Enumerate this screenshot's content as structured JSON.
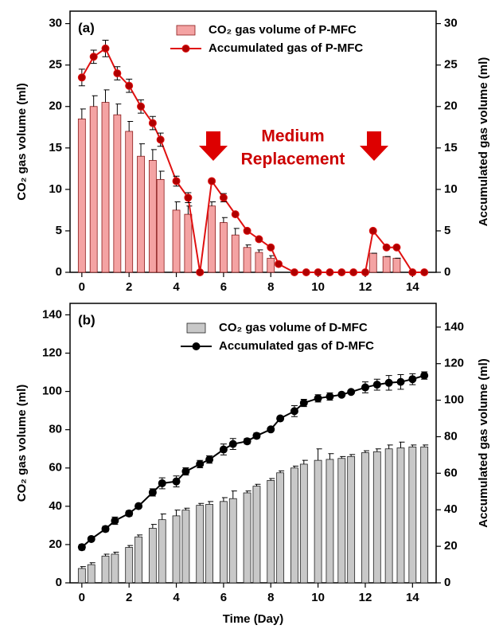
{
  "chart_data": [
    {
      "type": "bar",
      "panel_label": "(a)",
      "ylabel": "CO₂ gas volume (ml)",
      "y2label": "Accumulated gas volume (ml)",
      "annotation_lines": [
        "Medium",
        "Replacement"
      ],
      "x": [
        0,
        0.5,
        1,
        1.5,
        2,
        2.5,
        3,
        3.33,
        4,
        4.5,
        5,
        5.5,
        6,
        6.5,
        7,
        7.5,
        8,
        8.33,
        9,
        9.5,
        10,
        10.5,
        11,
        11.5,
        12,
        12.33,
        12.9,
        13.33,
        14,
        14.5
      ],
      "xlim": [
        -0.5,
        15
      ],
      "xticks": [
        0,
        2,
        4,
        6,
        8,
        10,
        12,
        14
      ],
      "ylim": [
        0,
        31.5
      ],
      "yticks": [
        0,
        5,
        10,
        15,
        20,
        25,
        30
      ],
      "y2lim": [
        0,
        31.5
      ],
      "y2ticks": [
        0,
        5,
        10,
        15,
        20,
        25,
        30
      ],
      "series": [
        {
          "name": "CO₂ gas volume of P-MFC",
          "type": "bar",
          "color": "#f4a3a3",
          "edge": "#8b1a1a",
          "values": [
            18.5,
            20,
            20.5,
            19,
            17,
            14,
            13.5,
            11.2,
            7.5,
            7,
            0,
            8,
            6,
            4.5,
            3,
            2.4,
            1.7,
            0,
            0,
            0,
            0,
            0,
            0,
            0,
            0,
            2.3,
            1.9,
            1.7,
            0,
            0
          ],
          "errors": [
            1.2,
            1.3,
            1.5,
            1.3,
            1.2,
            1.5,
            1.3,
            1.0,
            1.0,
            1.0,
            0,
            0.5,
            0.6,
            0.8,
            0.3,
            0.3,
            0.3,
            0,
            0,
            0,
            0,
            0,
            0,
            0,
            0,
            0,
            0,
            0,
            0,
            0
          ]
        },
        {
          "name": "Accumulated gas of P-MFC",
          "type": "line",
          "axis": "y2",
          "color": "#e01010",
          "marker_color": "#b00000",
          "values": [
            23.5,
            26,
            27,
            24,
            22.5,
            20,
            18,
            16,
            11,
            9,
            0,
            11,
            9,
            7,
            5,
            4,
            3,
            1,
            0,
            0,
            0,
            0,
            0,
            0,
            0,
            5,
            3,
            3,
            0,
            0
          ],
          "errors": [
            1.0,
            0.8,
            1.0,
            0.8,
            0.8,
            0.8,
            0.8,
            0.8,
            0.6,
            0.6,
            0,
            0,
            0.5,
            0,
            0,
            0,
            0,
            0,
            0,
            0,
            0,
            0,
            0,
            0,
            0,
            0,
            0,
            0,
            0,
            0
          ]
        }
      ]
    },
    {
      "type": "bar",
      "panel_label": "(b)",
      "xlabel": "Time (Day)",
      "ylabel": "CO₂ gas volume (ml)",
      "y2label": "Accumulated gas volume (ml)",
      "x": [
        0,
        0.4,
        1,
        1.4,
        2,
        2.4,
        3,
        3.4,
        4,
        4.4,
        5,
        5.4,
        6,
        6.4,
        7,
        7.4,
        8,
        8.4,
        9,
        9.4,
        10,
        10.5,
        11,
        11.4,
        12,
        12.5,
        13,
        13.5,
        14,
        14.5
      ],
      "xlim": [
        -0.5,
        15
      ],
      "xticks": [
        0,
        2,
        4,
        6,
        8,
        10,
        12,
        14
      ],
      "ylim": [
        0,
        146
      ],
      "yticks": [
        0,
        20,
        40,
        60,
        80,
        100,
        120,
        140
      ],
      "y2lim": [
        0,
        153
      ],
      "y2ticks": [
        0,
        20,
        40,
        60,
        80,
        100,
        120,
        140
      ],
      "series": [
        {
          "name": "CO₂ gas volume of D-MFC",
          "type": "bar",
          "color": "#c8c8c8",
          "edge": "#222222",
          "values": [
            7.5,
            9.5,
            14,
            15,
            18.5,
            24,
            28.5,
            33,
            35,
            38,
            40.5,
            41,
            42.5,
            44,
            47,
            50.5,
            53.5,
            57.5,
            60,
            62,
            64,
            64.5,
            65,
            66,
            68,
            68.5,
            70,
            70.5,
            71,
            71
          ],
          "errors": [
            1,
            1,
            1,
            1,
            1,
            1,
            2,
            3,
            3,
            1,
            1,
            1.5,
            2,
            4,
            1,
            1,
            1,
            1,
            1,
            2,
            6,
            3,
            1,
            1,
            1,
            1.5,
            2,
            3,
            1,
            1
          ]
        },
        {
          "name": "Accumulated gas of D-MFC",
          "type": "line",
          "axis": "y2",
          "color": "#000000",
          "marker_color": "#000000",
          "values": [
            19.5,
            24,
            29.5,
            34,
            38,
            42,
            49.5,
            54.5,
            55.5,
            61,
            65,
            67.5,
            73,
            76,
            77.5,
            80.5,
            84,
            90,
            94,
            98.5,
            101,
            102,
            103,
            104.5,
            107,
            108.5,
            109.5,
            110,
            111.5,
            113.5
          ],
          "errors": [
            1.5,
            1,
            1.5,
            2,
            1.5,
            1,
            2,
            3,
            3,
            2,
            2,
            2,
            3,
            3,
            1.5,
            1.5,
            1,
            1,
            3,
            2,
            2,
            2,
            1,
            1,
            3,
            3,
            4,
            4,
            3,
            2
          ]
        }
      ]
    }
  ]
}
